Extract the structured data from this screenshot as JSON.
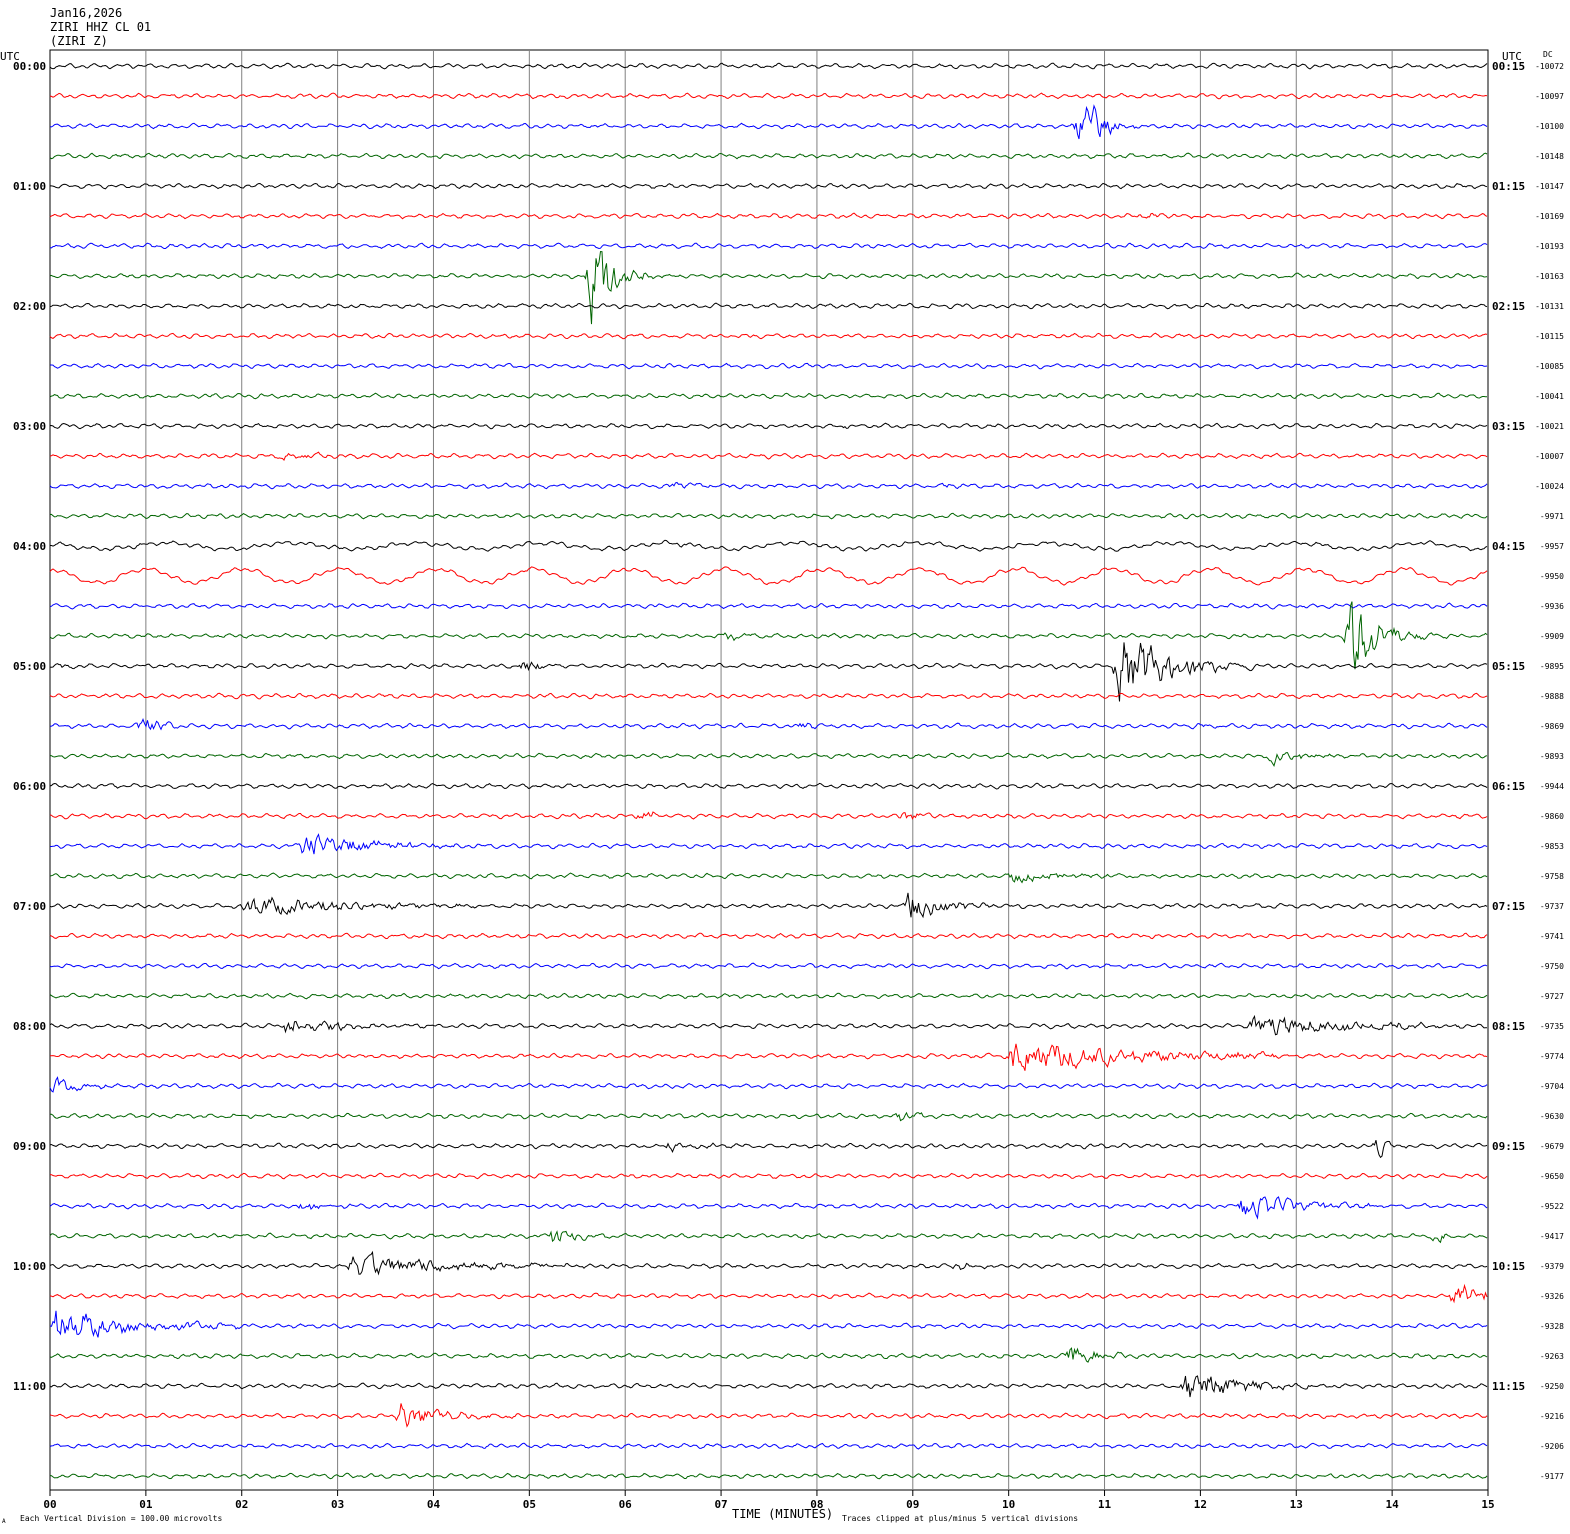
{
  "header": {
    "date": "Jan16,2026",
    "station_line": "ZIRI HHZ CL 01",
    "station_code": "(ZIRI Z)"
  },
  "left_axis_label": "UTC",
  "right_axis_label": "UTC",
  "dc_label": "DC",
  "footer": {
    "x_axis_title": "TIME (MINUTES)",
    "scale_note": "Each Vertical Division =  100.00 microvolts",
    "clip_note": "Traces clipped at plus/minus 5 vertical divisions",
    "corner_mark": "A"
  },
  "colors": {
    "trace_cycle": [
      "#000000",
      "#ff0000",
      "#0000ff",
      "#006400"
    ],
    "grid": "#808080",
    "text": "#000000"
  },
  "chart_data": {
    "type": "line",
    "description_type": "helicorder seismogram",
    "x_unit": "minutes",
    "xlim": [
      0,
      15
    ],
    "x_ticks": [
      "00",
      "01",
      "02",
      "03",
      "04",
      "05",
      "06",
      "07",
      "08",
      "09",
      "10",
      "11",
      "12",
      "13",
      "14",
      "15"
    ],
    "rows_per_hour": 4,
    "row_count": 48,
    "left_time_labels": [
      "00:00",
      "01:00",
      "02:00",
      "03:00",
      "04:00",
      "05:00",
      "06:00",
      "07:00",
      "08:00",
      "09:00",
      "10:00",
      "11:00"
    ],
    "right_time_labels": [
      "00:15",
      "01:15",
      "02:15",
      "03:15",
      "04:15",
      "05:15",
      "06:15",
      "07:15",
      "08:15",
      "09:15",
      "10:15",
      "11:15"
    ],
    "dc_offsets": [
      "-10072",
      "-10097",
      "-10100",
      "-10148",
      "-10147",
      "-10169",
      "-10193",
      "-10163",
      "-10131",
      "-10115",
      "-10085",
      "-10041",
      "-10021",
      "-10007",
      "-10024",
      "-9971",
      "-9957",
      "-9950",
      "-9936",
      "-9909",
      "-9895",
      "-9888",
      "-9869",
      "-9893",
      "-9944",
      "-9860",
      "-9853",
      "-9758",
      "-9737",
      "-9741",
      "-9750",
      "-9727",
      "-9735",
      "-9774",
      "-9704",
      "-9630",
      "-9679",
      "-9650",
      "-9522",
      "-9417",
      "-9379",
      "-9326",
      "-9328",
      "-9263",
      "-9250",
      "-9216",
      "-9206",
      "-9177"
    ],
    "clip_divisions": 5,
    "events": [
      {
        "row": 1,
        "minute": 7.55,
        "duration": 0.1,
        "amp": 3
      },
      {
        "row": 2,
        "minute": 10.7,
        "duration": 0.3,
        "amp": 60,
        "type": "clipped_spike"
      },
      {
        "row": 5,
        "minute": 11.3,
        "duration": 0.5,
        "amp": 4
      },
      {
        "row": 7,
        "minute": 5.6,
        "duration": 0.4,
        "amp": 70,
        "type": "clipped_spike"
      },
      {
        "row": 8,
        "minute": 3.1,
        "duration": 0.1,
        "amp": 3
      },
      {
        "row": 12,
        "minute": 8.2,
        "duration": 0.2,
        "amp": 3
      },
      {
        "row": 13,
        "minute": 2.4,
        "duration": 0.5,
        "amp": 7
      },
      {
        "row": 14,
        "minute": 6.45,
        "duration": 0.4,
        "amp": 6
      },
      {
        "row": 14,
        "minute": 9.3,
        "duration": 0.4,
        "amp": 4
      },
      {
        "row": 16,
        "minute": 6.5,
        "duration": 0.1,
        "amp": 4
      },
      {
        "row": 19,
        "minute": 7.0,
        "duration": 0.3,
        "amp": 8
      },
      {
        "row": 19,
        "minute": 13.5,
        "duration": 0.5,
        "amp": 70,
        "type": "clipped_spike"
      },
      {
        "row": 20,
        "minute": 0.1,
        "duration": 0.1,
        "amp": 4
      },
      {
        "row": 20,
        "minute": 4.9,
        "duration": 0.3,
        "amp": 12
      },
      {
        "row": 20,
        "minute": 11.1,
        "duration": 0.9,
        "amp": 55
      },
      {
        "row": 22,
        "minute": 0.9,
        "duration": 0.3,
        "amp": 18
      },
      {
        "row": 22,
        "minute": 7.8,
        "duration": 0.2,
        "amp": 6
      },
      {
        "row": 22,
        "minute": 11.9,
        "duration": 0.1,
        "amp": 4
      },
      {
        "row": 23,
        "minute": 12.7,
        "duration": 0.5,
        "amp": 14
      },
      {
        "row": 25,
        "minute": 6.1,
        "duration": 0.3,
        "amp": 9
      },
      {
        "row": 25,
        "minute": 8.85,
        "duration": 0.3,
        "amp": 10
      },
      {
        "row": 26,
        "minute": 2.6,
        "duration": 1.3,
        "amp": 18
      },
      {
        "row": 27,
        "minute": 10.0,
        "duration": 0.9,
        "amp": 10
      },
      {
        "row": 28,
        "minute": 2.0,
        "duration": 2.0,
        "amp": 14
      },
      {
        "row": 28,
        "minute": 8.9,
        "duration": 0.6,
        "amp": 24
      },
      {
        "row": 32,
        "minute": 2.4,
        "duration": 1.0,
        "amp": 14
      },
      {
        "row": 32,
        "minute": 12.5,
        "duration": 1.7,
        "amp": 18
      },
      {
        "row": 33,
        "minute": 10.0,
        "duration": 2.2,
        "amp": 26
      },
      {
        "row": 34,
        "minute": 0.0,
        "duration": 0.4,
        "amp": 12
      },
      {
        "row": 35,
        "minute": 8.8,
        "duration": 0.3,
        "amp": 9
      },
      {
        "row": 36,
        "minute": 6.4,
        "duration": 0.5,
        "amp": 7
      },
      {
        "row": 36,
        "minute": 13.8,
        "duration": 0.2,
        "amp": 14
      },
      {
        "row": 38,
        "minute": 2.6,
        "duration": 0.4,
        "amp": 8
      },
      {
        "row": 38,
        "minute": 12.4,
        "duration": 1.0,
        "amp": 20
      },
      {
        "row": 39,
        "minute": 5.2,
        "duration": 0.5,
        "amp": 14
      },
      {
        "row": 39,
        "minute": 14.4,
        "duration": 0.1,
        "amp": 12
      },
      {
        "row": 40,
        "minute": 3.1,
        "duration": 1.9,
        "amp": 18
      },
      {
        "row": 40,
        "minute": 9.4,
        "duration": 0.3,
        "amp": 7
      },
      {
        "row": 41,
        "minute": 14.6,
        "duration": 0.4,
        "amp": 28
      },
      {
        "row": 42,
        "minute": 0.0,
        "duration": 1.4,
        "amp": 26
      },
      {
        "row": 43,
        "minute": 10.6,
        "duration": 0.5,
        "amp": 18
      },
      {
        "row": 44,
        "minute": 11.8,
        "duration": 1.0,
        "amp": 24
      },
      {
        "row": 45,
        "minute": 3.6,
        "duration": 0.7,
        "amp": 22
      }
    ]
  }
}
